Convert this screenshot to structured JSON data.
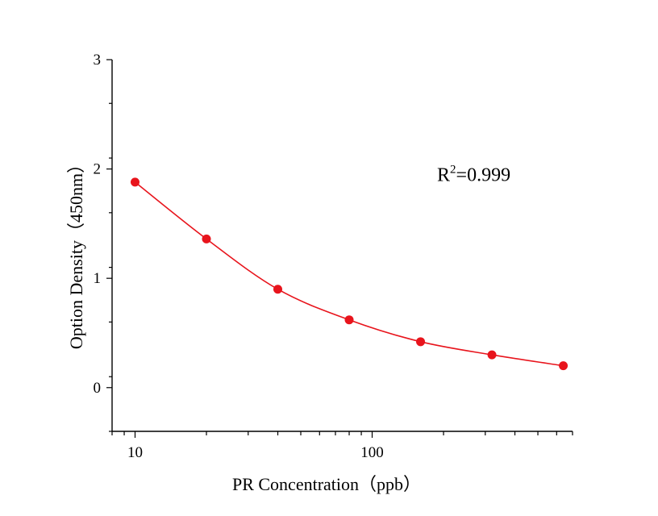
{
  "chart_data": {
    "type": "scatter",
    "xlabel": "PR Concentration（ppb）",
    "ylabel": "Option Density（450nm）",
    "xscale": "log",
    "xlim": [
      8,
      700
    ],
    "ylim": [
      -0.4,
      3
    ],
    "x_ticks": [
      10,
      100
    ],
    "y_ticks": [
      0,
      1,
      2,
      3
    ],
    "series": [
      {
        "points": [
          {
            "x": 10,
            "y": 1.88
          },
          {
            "x": 20,
            "y": 1.36
          },
          {
            "x": 40,
            "y": 0.9
          },
          {
            "x": 80,
            "y": 0.62
          },
          {
            "x": 160,
            "y": 0.42
          },
          {
            "x": 320,
            "y": 0.3
          },
          {
            "x": 640,
            "y": 0.2
          }
        ],
        "color": "#e8141c",
        "fit_line": true
      }
    ],
    "annotation": {
      "base": "R",
      "sup": "2",
      "rest": "=0.999",
      "x": 200,
      "y": 1.95
    },
    "grid": false
  }
}
